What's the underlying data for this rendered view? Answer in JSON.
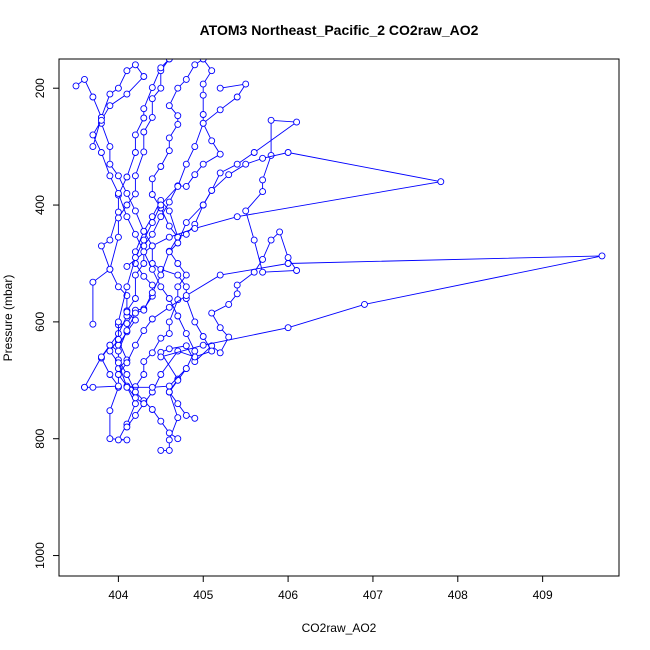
{
  "chart_data": {
    "type": "line",
    "title": "ATOM3 Northeast_Pacific_2 CO2raw_AO2",
    "xlabel": "CO2raw_AO2",
    "ylabel": "Pressure (mbar)",
    "xlim": [
      403.3,
      409.9
    ],
    "ylim": [
      1035,
      150
    ],
    "y_reversed": true,
    "x_ticks": [
      404,
      405,
      406,
      407,
      408,
      409
    ],
    "y_ticks": [
      200,
      400,
      600,
      800,
      1000
    ],
    "grid": false,
    "legend": "none",
    "color": "#0000ff",
    "series": [
      {
        "points": [
          [
            404.5,
            820
          ],
          [
            404.6,
            820
          ],
          [
            404.6,
            802
          ],
          [
            404.7,
            764
          ],
          [
            404.6,
            720
          ],
          [
            404.7,
            698
          ],
          [
            404.5,
            652
          ],
          [
            404.6,
            646
          ],
          [
            404.8,
            641
          ],
          [
            404.9,
            668
          ],
          [
            405.1,
            641
          ],
          [
            405.2,
            653
          ],
          [
            405.3,
            626
          ],
          [
            405.2,
            610
          ],
          [
            405.1,
            585
          ],
          [
            405.3,
            570
          ],
          [
            405.4,
            552
          ],
          [
            405.4,
            537
          ],
          [
            405.6,
            515
          ],
          [
            405.7,
            493
          ],
          [
            405.8,
            460
          ],
          [
            405.9,
            446
          ],
          [
            406.0,
            490
          ],
          [
            406.1,
            512
          ],
          [
            405.7,
            515
          ],
          [
            405.6,
            460
          ],
          [
            405.5,
            410
          ],
          [
            405.7,
            377
          ],
          [
            405.7,
            357
          ],
          [
            405.8,
            315
          ],
          [
            405.8,
            255
          ],
          [
            406.1,
            258
          ],
          [
            405.6,
            310
          ],
          [
            405.4,
            330
          ],
          [
            405.2,
            345
          ],
          [
            405.1,
            375
          ],
          [
            405.0,
            400
          ],
          [
            404.9,
            433
          ],
          [
            404.8,
            450
          ],
          [
            404.7,
            455
          ],
          [
            404.6,
            410
          ],
          [
            404.5,
            392
          ],
          [
            404.4,
            420
          ],
          [
            404.3,
            445
          ],
          [
            404.2,
            480
          ],
          [
            404.2,
            500
          ],
          [
            404.3,
            522
          ],
          [
            404.4,
            537
          ],
          [
            404.4,
            556
          ],
          [
            404.3,
            578
          ],
          [
            404.2,
            580
          ],
          [
            404.1,
            603
          ],
          [
            404.0,
            605
          ],
          [
            404.0,
            632
          ],
          [
            404.1,
            665
          ],
          [
            404.0,
            680
          ],
          [
            404.0,
            712
          ],
          [
            403.9,
            752
          ],
          [
            403.9,
            800
          ],
          [
            404.1,
            802
          ],
          [
            404.0,
            802
          ],
          [
            404.1,
            775
          ],
          [
            404.2,
            740
          ],
          [
            404.1,
            711
          ],
          [
            404.2,
            711
          ],
          [
            404.3,
            690
          ],
          [
            404.3,
            668
          ],
          [
            404.4,
            653
          ],
          [
            404.5,
            628
          ],
          [
            404.6,
            620
          ],
          [
            404.6,
            600
          ],
          [
            404.7,
            562
          ],
          [
            404.7,
            540
          ],
          [
            404.8,
            520
          ],
          [
            404.7,
            500
          ],
          [
            404.6,
            479
          ],
          [
            404.7,
            455
          ],
          [
            404.6,
            436
          ],
          [
            404.5,
            405
          ],
          [
            404.4,
            382
          ],
          [
            404.4,
            355
          ],
          [
            404.5,
            334
          ],
          [
            404.6,
            307
          ],
          [
            404.6,
            285
          ],
          [
            404.7,
            262
          ],
          [
            404.7,
            247
          ],
          [
            404.6,
            230
          ],
          [
            404.7,
            200
          ],
          [
            404.8,
            185
          ],
          [
            404.9,
            160
          ],
          [
            405.0,
            150
          ],
          [
            405.1,
            170
          ],
          [
            405.0,
            193
          ],
          [
            405.0,
            212
          ],
          [
            405.0,
            245
          ],
          [
            405.0,
            260
          ],
          [
            405.1,
            290
          ],
          [
            405.2,
            313
          ],
          [
            405.0,
            330
          ],
          [
            404.9,
            348
          ],
          [
            404.8,
            368
          ],
          [
            404.7,
            367
          ],
          [
            404.6,
            395
          ],
          [
            404.5,
            420
          ],
          [
            404.4,
            450
          ],
          [
            404.3,
            470
          ],
          [
            404.3,
            500
          ],
          [
            404.2,
            520
          ],
          [
            404.2,
            560
          ],
          [
            404.1,
            581
          ],
          [
            404.1,
            590
          ],
          [
            404.0,
            620
          ],
          [
            403.9,
            640
          ],
          [
            403.8,
            662
          ],
          [
            403.9,
            690
          ],
          [
            404.0,
            710
          ],
          [
            403.7,
            712
          ],
          [
            403.6,
            712
          ]
        ]
      },
      {
        "points": [
          [
            403.7,
            604
          ],
          [
            403.7,
            532
          ],
          [
            403.9,
            510
          ],
          [
            404.0,
            455
          ],
          [
            404.0,
            422
          ],
          [
            404.1,
            400
          ],
          [
            404.2,
            381
          ],
          [
            404.2,
            350
          ],
          [
            404.3,
            309
          ],
          [
            404.3,
            275
          ],
          [
            404.4,
            250
          ],
          [
            404.4,
            218
          ],
          [
            404.5,
            200
          ],
          [
            404.5,
            170
          ],
          [
            404.6,
            150
          ],
          [
            404.5,
            165
          ],
          [
            404.4,
            199
          ],
          [
            404.3,
            235
          ],
          [
            404.3,
            251
          ],
          [
            404.2,
            280
          ],
          [
            404.2,
            310
          ],
          [
            404.1,
            352
          ],
          [
            404.0,
            383
          ],
          [
            404.0,
            412
          ],
          [
            403.9,
            460
          ],
          [
            403.8,
            470
          ],
          [
            403.9,
            510
          ],
          [
            404.0,
            540
          ],
          [
            404.1,
            555
          ],
          [
            404.1,
            583
          ],
          [
            404.2,
            597
          ],
          [
            404.1,
            617
          ],
          [
            404.0,
            640
          ],
          [
            404.0,
            665
          ],
          [
            404.1,
            690
          ],
          [
            404.2,
            720
          ],
          [
            404.3,
            735
          ],
          [
            404.4,
            750
          ],
          [
            404.5,
            770
          ],
          [
            404.6,
            790
          ],
          [
            404.7,
            800
          ]
        ]
      },
      {
        "points": [
          [
            403.5,
            196
          ],
          [
            403.6,
            185
          ],
          [
            403.7,
            215
          ],
          [
            403.8,
            250
          ],
          [
            403.8,
            260
          ],
          [
            403.9,
            300
          ],
          [
            403.9,
            330
          ],
          [
            404.0,
            350
          ],
          [
            404.1,
            380
          ],
          [
            404.2,
            410
          ],
          [
            404.3,
            445
          ],
          [
            404.4,
            470
          ],
          [
            404.4,
            500
          ],
          [
            404.5,
            510
          ],
          [
            404.7,
            520
          ],
          [
            404.8,
            540
          ],
          [
            404.8,
            560
          ],
          [
            404.9,
            600
          ],
          [
            405.0,
            625
          ],
          [
            405.1,
            650
          ],
          [
            404.9,
            660
          ],
          [
            404.7,
            650
          ],
          [
            404.5,
            690
          ],
          [
            404.4,
            720
          ],
          [
            404.3,
            740
          ],
          [
            404.2,
            760
          ],
          [
            404.1,
            780
          ]
        ]
      },
      {
        "points": [
          [
            403.6,
            712
          ],
          [
            403.8,
            660
          ],
          [
            403.9,
            640
          ],
          [
            404.0,
            650
          ],
          [
            404.1,
            615
          ],
          [
            404.2,
            585
          ],
          [
            404.3,
            580
          ],
          [
            404.4,
            550
          ],
          [
            404.5,
            520
          ],
          [
            404.6,
            480
          ],
          [
            404.7,
            465
          ],
          [
            404.8,
            430
          ],
          [
            405.0,
            400
          ],
          [
            405.1,
            375
          ],
          [
            405.3,
            348
          ],
          [
            405.5,
            330
          ],
          [
            405.7,
            320
          ],
          [
            406.0,
            310
          ],
          [
            407.8,
            360
          ],
          [
            405.4,
            420
          ],
          [
            404.9,
            440
          ],
          [
            404.6,
            455
          ],
          [
            404.4,
            470
          ],
          [
            404.1,
            505
          ]
        ]
      },
      {
        "points": [
          [
            404.5,
            660
          ],
          [
            405.0,
            640
          ],
          [
            406.0,
            610
          ],
          [
            406.9,
            570
          ],
          [
            409.7,
            487
          ],
          [
            406.0,
            500
          ],
          [
            405.2,
            520
          ],
          [
            404.8,
            555
          ],
          [
            404.6,
            575
          ],
          [
            404.4,
            595
          ],
          [
            404.3,
            615
          ],
          [
            404.2,
            640
          ],
          [
            404.1,
            670
          ],
          [
            404.0,
            690
          ],
          [
            404.1,
            710
          ],
          [
            404.2,
            730
          ],
          [
            404.3,
            740
          ]
        ]
      },
      {
        "points": [
          [
            403.7,
            300
          ],
          [
            403.8,
            250
          ],
          [
            403.9,
            210
          ],
          [
            404.0,
            200
          ],
          [
            404.1,
            170
          ],
          [
            404.2,
            160
          ],
          [
            404.3,
            180
          ],
          [
            404.1,
            210
          ],
          [
            403.9,
            230
          ],
          [
            403.8,
            255
          ],
          [
            403.7,
            280
          ],
          [
            403.8,
            310
          ],
          [
            403.9,
            350
          ],
          [
            404.0,
            380
          ],
          [
            404.1,
            420
          ],
          [
            404.2,
            450
          ],
          [
            404.3,
            480
          ],
          [
            404.4,
            510
          ],
          [
            404.5,
            540
          ],
          [
            404.6,
            560
          ],
          [
            404.7,
            590
          ],
          [
            404.8,
            620
          ],
          [
            404.9,
            650
          ],
          [
            404.8,
            680
          ],
          [
            404.7,
            700
          ],
          [
            404.6,
            720
          ],
          [
            404.7,
            740
          ],
          [
            404.8,
            760
          ],
          [
            404.9,
            765
          ]
        ]
      },
      {
        "points": [
          [
            405.2,
            200
          ],
          [
            405.5,
            193
          ],
          [
            405.4,
            215
          ],
          [
            405.2,
            237
          ],
          [
            405.0,
            260
          ],
          [
            404.9,
            300
          ],
          [
            404.8,
            330
          ],
          [
            404.7,
            368
          ],
          [
            404.5,
            400
          ],
          [
            404.4,
            430
          ],
          [
            404.3,
            460
          ],
          [
            404.2,
            490
          ],
          [
            404.1,
            540
          ],
          [
            404.0,
            600
          ],
          [
            404.0,
            630
          ],
          [
            403.9,
            650
          ],
          [
            404.0,
            670
          ],
          [
            404.1,
            712
          ],
          [
            404.4,
            712
          ],
          [
            404.6,
            710
          ],
          [
            404.8,
            680
          ]
        ]
      }
    ]
  }
}
